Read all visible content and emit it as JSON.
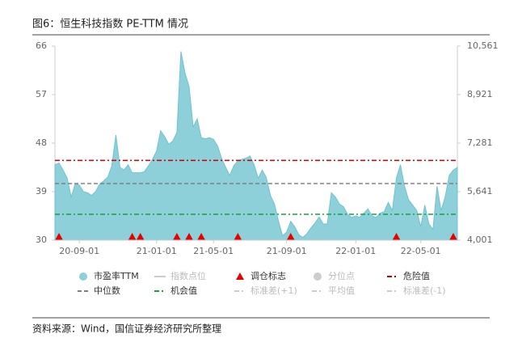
{
  "chart_data": {
    "type": "area",
    "title": "图6：恒生科技指数 PE-TTM 情况",
    "source": "资料来源：Wind，国信证券经济研究所整理",
    "categories": [
      null,
      null,
      null,
      null,
      null,
      null,
      "20-09-01",
      null,
      null,
      null,
      null,
      null,
      null,
      null,
      null,
      null,
      null,
      null,
      null,
      null,
      null,
      null,
      null,
      null,
      null,
      "21-01-01",
      null,
      null,
      null,
      null,
      null,
      null,
      null,
      null,
      null,
      null,
      null,
      null,
      null,
      "21-05-01",
      null,
      null,
      null,
      null,
      null,
      null,
      null,
      null,
      null,
      null,
      null,
      null,
      null,
      null,
      null,
      null,
      null,
      "21-09-01",
      null,
      null,
      null,
      null,
      null,
      null,
      null,
      null,
      null,
      null,
      null,
      null,
      null,
      null,
      null,
      null,
      "22-01-01",
      null,
      null,
      null,
      null,
      null,
      null,
      null,
      null,
      null,
      null,
      null,
      null,
      null,
      null,
      null,
      "22-05-01",
      null,
      null,
      null,
      null,
      null,
      null,
      null,
      null,
      null
    ],
    "ylim": [
      30,
      66
    ],
    "yticks": [
      30,
      39,
      48,
      57,
      66
    ],
    "y2lim": [
      4001,
      10561
    ],
    "y2ticks": [
      {
        "value": 4001,
        "label": "4,001"
      },
      {
        "value": 5641,
        "label": "5,641"
      },
      {
        "value": 7281,
        "label": "7,281"
      },
      {
        "value": 8921,
        "label": "8,921"
      },
      {
        "value": 10561,
        "label": "10,561"
      }
    ],
    "series": [
      {
        "name": "市盈率TTM",
        "kind": "area",
        "visible": true,
        "color": "#8dd0d9",
        "values": [
          44,
          44.3,
          43,
          41.5,
          38,
          40.5,
          40.2,
          39,
          38.8,
          38.3,
          39,
          40.4,
          41,
          41.7,
          43.8,
          49.5,
          43.5,
          43,
          44,
          42.5,
          42.5,
          42.5,
          42.7,
          43.8,
          45,
          46.5,
          50.3,
          49.2,
          47.8,
          48.4,
          50,
          65,
          61,
          58.5,
          51,
          52.5,
          49,
          48.8,
          49,
          48.7,
          47.5,
          45.2,
          43.5,
          42,
          43.8,
          44.7,
          45,
          45.2,
          45.6,
          44,
          41.5,
          43,
          41.6,
          38.3,
          36.7,
          33.5,
          30.8,
          31.5,
          33.5,
          32.5,
          31,
          30.5,
          31.2,
          32.3,
          33.2,
          34.3,
          33,
          33,
          38.8,
          38,
          36.7,
          36.2,
          34.8,
          34.2,
          34.5,
          34.2,
          35,
          35.8,
          34.5,
          34.2,
          35,
          35.3,
          37,
          35.5,
          41.5,
          44,
          40,
          37.5,
          36.5,
          35.5,
          32.5,
          36.5,
          33,
          32,
          40,
          35.5,
          38,
          42,
          43,
          43.5
        ]
      },
      {
        "name": "指数点位",
        "kind": "line",
        "visible": false,
        "color": "#cccccc"
      },
      {
        "name": "调仓标志",
        "kind": "marker",
        "visible": true,
        "color": "#e60000",
        "values": [
          null,
          30,
          null,
          null,
          null,
          null,
          null,
          null,
          null,
          null,
          null,
          null,
          null,
          null,
          null,
          null,
          null,
          null,
          null,
          30,
          null,
          30,
          null,
          null,
          null,
          null,
          null,
          null,
          null,
          null,
          30,
          null,
          null,
          30,
          null,
          null,
          30,
          null,
          null,
          null,
          null,
          null,
          null,
          null,
          null,
          30,
          null,
          null,
          null,
          null,
          null,
          null,
          null,
          null,
          null,
          null,
          null,
          null,
          30,
          null,
          null,
          null,
          null,
          null,
          null,
          null,
          null,
          null,
          null,
          null,
          null,
          null,
          null,
          null,
          null,
          null,
          null,
          null,
          null,
          null,
          null,
          null,
          null,
          null,
          30,
          null,
          null,
          null,
          null,
          null,
          null,
          null,
          null,
          null,
          null,
          null,
          null,
          null,
          30,
          null
        ]
      },
      {
        "name": "分位点",
        "kind": "point",
        "visible": false,
        "color": "#cccccc"
      },
      {
        "name": "危险值",
        "kind": "hline",
        "visible": true,
        "color": "#c00000",
        "dash": "6 3 2 3",
        "value": 44.8
      },
      {
        "name": "中位数",
        "kind": "hline",
        "visible": true,
        "color": "#808080",
        "dash": "5 3",
        "value": 40.5
      },
      {
        "name": "机会值",
        "kind": "hline",
        "visible": true,
        "color": "#1a9e46",
        "dash": "6 3 2 3",
        "value": 34.8
      },
      {
        "name": "标准差(+1)",
        "kind": "hline",
        "visible": false,
        "color": "#cccccc",
        "dash": "6 3 2 3"
      },
      {
        "name": "平均值",
        "kind": "hline",
        "visible": false,
        "color": "#cccccc",
        "dash": "6 3 2 3"
      },
      {
        "name": "标准差(-1)",
        "kind": "hline",
        "visible": false,
        "color": "#cccccc",
        "dash": "6 3 2 3"
      }
    ]
  }
}
